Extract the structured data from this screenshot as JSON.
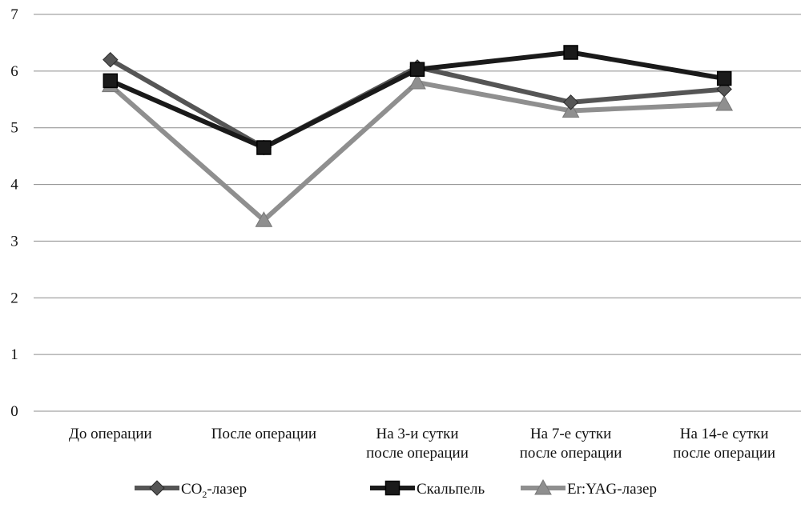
{
  "chart_data": {
    "type": "line",
    "title": "",
    "xlabel": "",
    "ylabel": "",
    "ylim": [
      0,
      7
    ],
    "yticks": [
      "0",
      "1",
      "2",
      "3",
      "4",
      "5",
      "6",
      "7"
    ],
    "grid": true,
    "legend_position": "bottom",
    "categories": [
      [
        "До операции"
      ],
      [
        "После операции"
      ],
      [
        "На 3-и сутки",
        "после операции"
      ],
      [
        "На 7-е сутки",
        "после операции"
      ],
      [
        "На 14-е сутки",
        "после операции"
      ]
    ],
    "series": [
      {
        "name": "CO₂-лазер",
        "name_parts": [
          "CO",
          "2",
          "-лазер"
        ],
        "marker": "diamond",
        "color": "#555555",
        "values": [
          6.2,
          4.65,
          6.07,
          5.45,
          5.68
        ]
      },
      {
        "name": "Скальпель",
        "name_parts": [
          "Скальпель",
          "",
          ""
        ],
        "marker": "square",
        "color": "#1a1a1a",
        "values": [
          5.83,
          4.65,
          6.03,
          6.33,
          5.87
        ]
      },
      {
        "name": "Er:YAG-лазер",
        "name_parts": [
          "Er:YAG-лазер",
          "",
          ""
        ],
        "marker": "triangle",
        "color": "#8f8f8f",
        "values": [
          5.75,
          3.37,
          5.8,
          5.3,
          5.42
        ]
      }
    ]
  }
}
